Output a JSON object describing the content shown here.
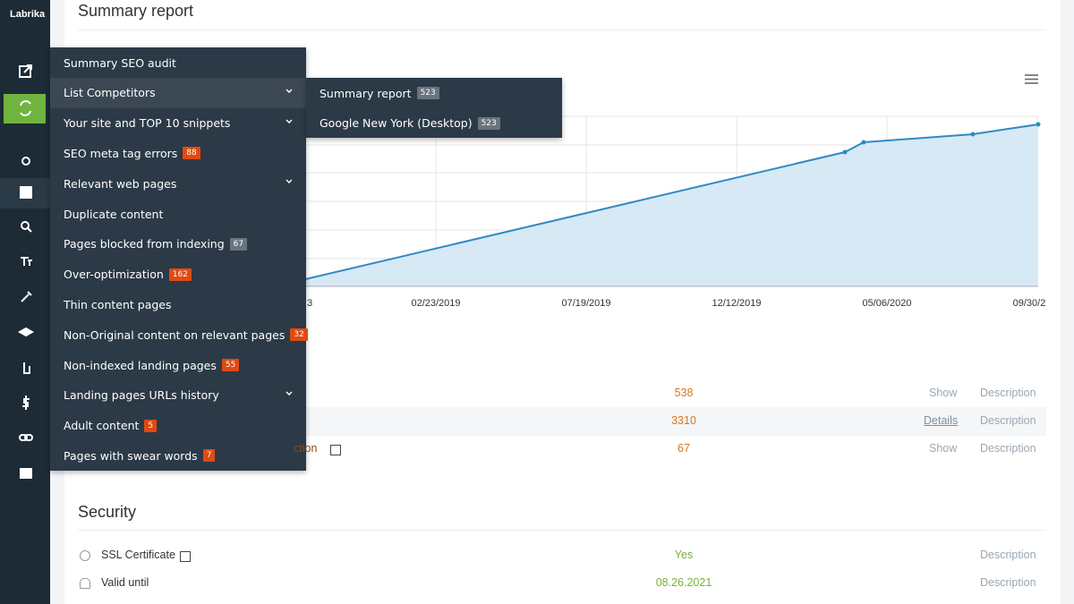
{
  "sidebar": {
    "logo": "Labrika"
  },
  "report": {
    "title": "Summary report",
    "chart": {
      "x_labels": [
        "3",
        "02/23/2019",
        "07/19/2019",
        "12/12/2019",
        "05/06/2020",
        "09/30/2"
      ]
    },
    "rows": [
      {
        "value": "538",
        "action": "Show",
        "link": "Description"
      },
      {
        "value": "3310",
        "action": "Details",
        "link": "Description"
      },
      {
        "label": "ction",
        "value": "67",
        "action": "Show",
        "link": "Description"
      }
    ]
  },
  "security": {
    "title": "Security",
    "rows": [
      {
        "label": "SSL Certificate",
        "value": "Yes",
        "link": "Description"
      },
      {
        "label": "Valid until",
        "value": "08.26.2021",
        "link": "Description"
      }
    ]
  },
  "menu": {
    "items": [
      {
        "label": "Summary SEO audit"
      },
      {
        "label": "List Competitors",
        "expandable": true,
        "active": true
      },
      {
        "label": "Your site and TOP 10 snippets",
        "expandable": true
      },
      {
        "label": "SEO meta tag errors",
        "badge": 88,
        "badge_style": "alert"
      },
      {
        "label": "Relevant web pages",
        "expandable": true
      },
      {
        "label": "Duplicate content"
      },
      {
        "label": "Pages blocked from indexing",
        "badge": 67,
        "badge_style": "neutral"
      },
      {
        "label": "Over-optimization",
        "badge": 162,
        "badge_style": "alert"
      },
      {
        "label": "Thin content pages"
      },
      {
        "label": "Non-Original content on relevant pages",
        "badge": 32,
        "badge_style": "alert"
      },
      {
        "label": "Non-indexed landing pages",
        "badge": 55,
        "badge_style": "alert"
      },
      {
        "label": "Landing pages URLs history",
        "expandable": true
      },
      {
        "label": "Adult content",
        "badge": 5,
        "badge_style": "alert"
      },
      {
        "label": "Pages with swear words",
        "badge": 7,
        "badge_style": "alert"
      }
    ]
  },
  "submenu": {
    "items": [
      {
        "label": "Summary report",
        "badge": 523,
        "badge_style": "neutral"
      },
      {
        "label": "Google New York (Desktop)",
        "badge": 523,
        "badge_style": "neutral"
      }
    ]
  }
}
